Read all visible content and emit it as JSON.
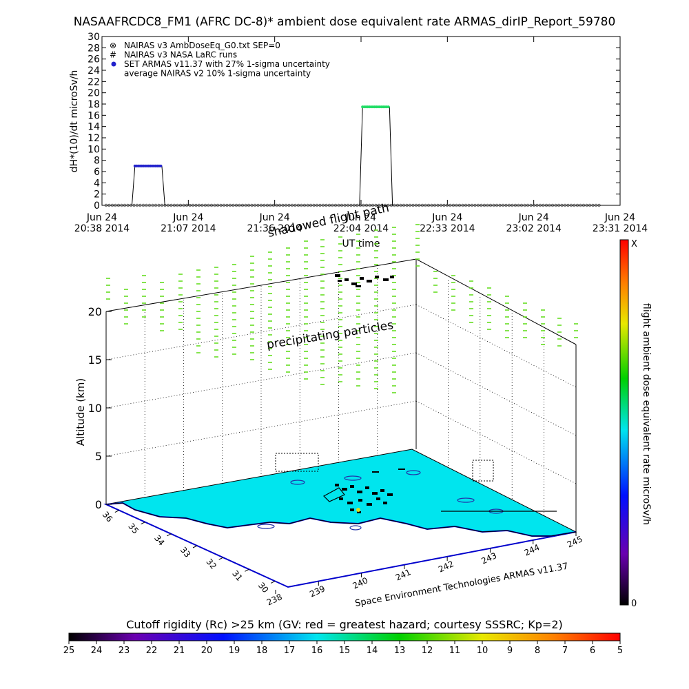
{
  "title": "NASAAFRCDC8_FM1 (AFRC DC-8)* ambient dose equivalent rate ARMAS_dirIP_Report_59780",
  "chart_data": [
    {
      "type": "line",
      "ylabel": "dH*(10)/dt microSv/h",
      "xlabel": "UT time",
      "ylim": [
        0,
        30
      ],
      "yticks": [
        "0",
        "2",
        "4",
        "6",
        "8",
        "10",
        "12",
        "14",
        "16",
        "18",
        "20",
        "22",
        "24",
        "26",
        "28",
        "30"
      ],
      "xticks": [
        {
          "date": "Jun 24",
          "time": "20:38 2014"
        },
        {
          "date": "Jun 24",
          "time": "21:07 2014"
        },
        {
          "date": "Jun 24",
          "time": "21:36 2014"
        },
        {
          "date": "Jun 24",
          "time": "22:04 2014"
        },
        {
          "date": "Jun 24",
          "time": "22:33 2014"
        },
        {
          "date": "Jun 24",
          "time": "23:02 2014"
        },
        {
          "date": "Jun 24",
          "time": "23:31 2014"
        }
      ],
      "legend": [
        {
          "symbol": "⊗",
          "label": "NAIRAS v3 AmbDoseEq_G0.txt SEP=0"
        },
        {
          "symbol": "#",
          "label": "NAIRAS v3 NASA LaRC runs"
        },
        {
          "symbol": "●",
          "label": "SET ARMAS v11.37 with 27% 1-sigma uncertainty"
        },
        {
          "symbol": "",
          "label": "average NAIRAS v2 10% 1-sigma uncertainty"
        }
      ],
      "series": [
        {
          "name": "SET ARMAS v11.37 with 27% 1-sigma uncertainty",
          "color": "#2222cc",
          "segments": [
            {
              "x": [
                "20:38",
                "20:48",
                "20:49",
                "20:58",
                "20:59",
                "23:30"
              ],
              "y": [
                0,
                0,
                7,
                7,
                0,
                0
              ]
            }
          ]
        },
        {
          "name": "SET ARMAS v11.37 with 27% 1-sigma uncertainty",
          "color": "#22dd66",
          "segments": [
            {
              "x": [
                "22:04",
                "22:05",
                "22:14",
                "22:15"
              ],
              "y": [
                0,
                17.5,
                17.5,
                0
              ]
            }
          ]
        }
      ]
    },
    {
      "type": "scatter",
      "zlabel": "Altitude (km)",
      "zticks": [
        "0",
        "5",
        "10",
        "15",
        "20"
      ],
      "latitude_ticks": [
        "30",
        "31",
        "32",
        "33",
        "34",
        "35",
        "36"
      ],
      "longitude_ticks": [
        "238",
        "239",
        "240",
        "241",
        "242",
        "243",
        "244",
        "245"
      ],
      "annotations": [
        "shadowed flight path",
        "precipitating particles"
      ],
      "credit": "Space Environment Technologies ARMAS v11.37",
      "colorbar_label": "flight ambient dose equivalent rate microSv/h",
      "colorbar_top": "X",
      "colorbar_bottom": "0",
      "colors": {
        "surface": "#00e5ee",
        "particles": "#66dd22",
        "coast": "#0000cc"
      }
    },
    {
      "type": "heatmap",
      "label": "Cutoff rigidity (Rc) >25 km (GV: red = greatest hazard; courtesy SSSRC; Kp=2)",
      "ticks": [
        "25",
        "24",
        "23",
        "22",
        "21",
        "20",
        "19",
        "18",
        "17",
        "16",
        "15",
        "14",
        "13",
        "12",
        "11",
        "10",
        "9",
        "8",
        "7",
        "6",
        "5"
      ]
    }
  ]
}
